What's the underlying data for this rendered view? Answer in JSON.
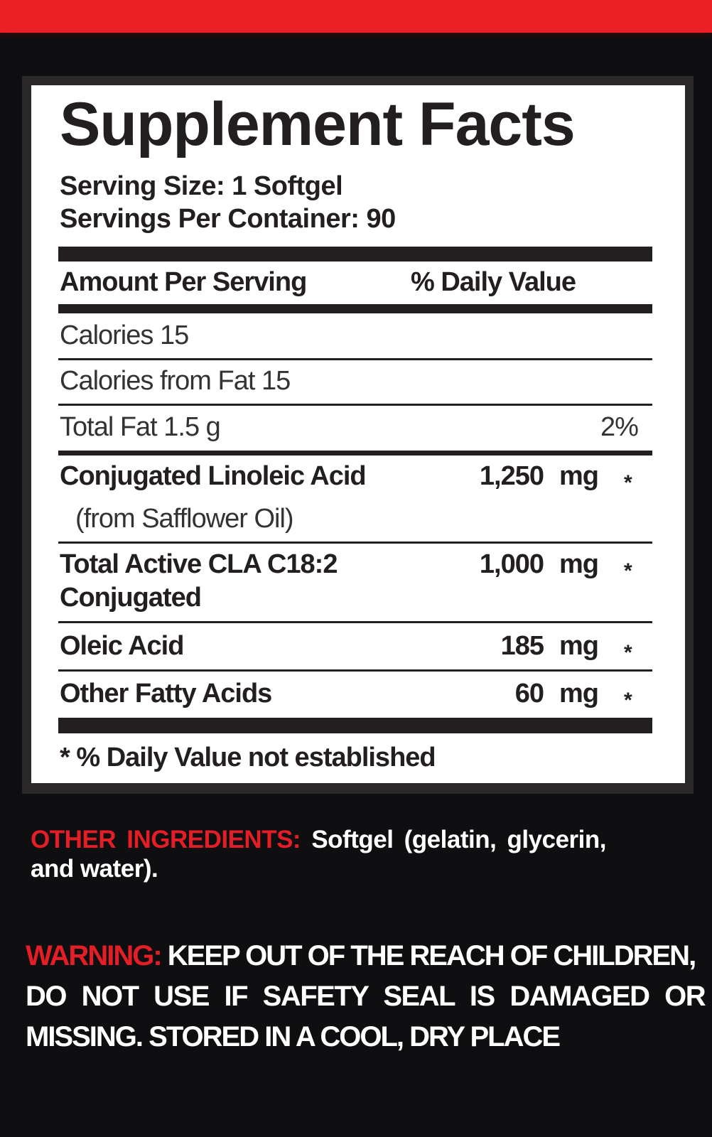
{
  "colors": {
    "accent_red": "#ec1f27",
    "background": "#0f0e10",
    "label_bg": "#ffffff",
    "text": "#231f20"
  },
  "facts": {
    "title": "Supplement Facts",
    "serving_size": "Serving Size: 1 Softgel",
    "servings_per_container": "Servings Per Container: 90",
    "header_amount": "Amount Per Serving",
    "header_dv": "% Daily Value",
    "calories": "Calories 15",
    "calories_from_fat": "Calories from Fat 15",
    "total_fat": "Total Fat 1.5 g",
    "total_fat_dv": "2%",
    "items": [
      {
        "name": "Conjugated Linoleic Acid",
        "sub": "(from Safflower Oil)",
        "amount": "1,250",
        "unit": "mg",
        "dv": "*"
      },
      {
        "name": "Total Active CLA C18:2",
        "sub": "Conjugated",
        "amount": "1,000",
        "unit": "mg",
        "dv": "*"
      },
      {
        "name": "Oleic Acid",
        "amount": "185",
        "unit": "mg",
        "dv": "*"
      },
      {
        "name": "Other Fatty Acids",
        "amount": "60",
        "unit": "mg",
        "dv": "*"
      }
    ],
    "footnote": "* % Daily Value not established"
  },
  "other_ingredients": {
    "label": "OTHER INGREDIENTS:",
    "text_line1": "Softgel (gelatin, glycerin,",
    "text_line2": "and water)."
  },
  "warning": {
    "label": "WARNING:",
    "line1": "KEEP OUT OF THE REACH OF CHILDREN,",
    "line2": "DO NOT USE IF SAFETY SEAL IS DAMAGED OR",
    "line3": "MISSING. STORED IN A COOL, DRY PLACE"
  }
}
